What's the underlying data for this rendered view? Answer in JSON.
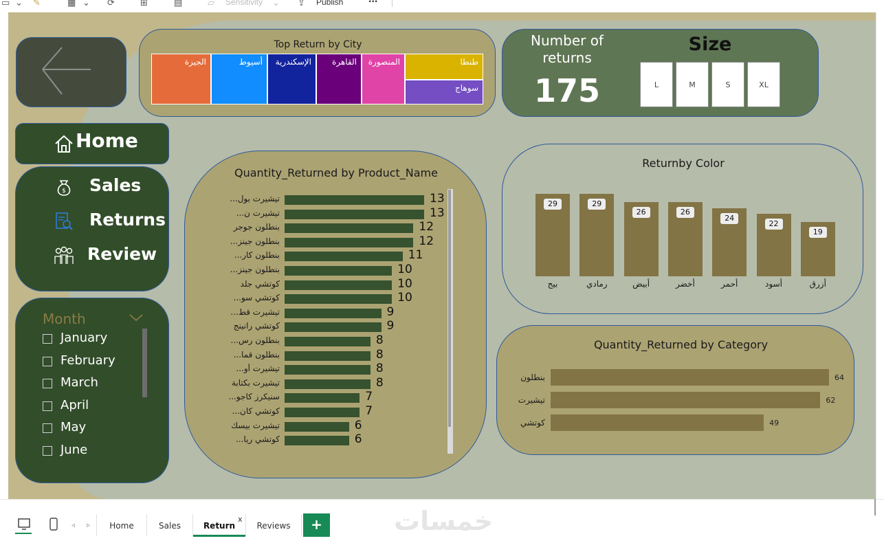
{
  "toolbar": {
    "sensitivity_label": "Sensitivity",
    "publish_label": "Publish",
    "more_label": "..."
  },
  "nav": {
    "home_label": "Home",
    "sales_label": "Sales",
    "returns_label": "Returns",
    "review_label": "Review"
  },
  "month_slicer": {
    "title": "Month",
    "items": [
      "January",
      "February",
      "March",
      "April",
      "May",
      "June"
    ]
  },
  "city_treemap": {
    "title": "Top Return by City",
    "cities": [
      {
        "name": "الجيزة",
        "color": "#e56b3a"
      },
      {
        "name": "أسيوط",
        "color": "#118dff"
      },
      {
        "name": "الإسكندرية",
        "color": "#12239e"
      },
      {
        "name": "القاهرة",
        "color": "#6b007b"
      },
      {
        "name": "المنصورة",
        "color": "#e044a7"
      },
      {
        "name": "طنطا",
        "color": "#d9b300"
      },
      {
        "name": "سوهاج",
        "color": "#744ec2"
      }
    ]
  },
  "kpi": {
    "title_line1": "Number of",
    "title_line2": "returns",
    "value": "175"
  },
  "size_slicer": {
    "title": "Size",
    "options": [
      "L",
      "M",
      "S",
      "XL"
    ]
  },
  "product_chart": {
    "title": "Quantity_Returned by Product_Name",
    "max": 13,
    "rows": [
      {
        "name": "تيشيرت بول...",
        "value": 13
      },
      {
        "name": "تيشيرت ن...",
        "value": 13
      },
      {
        "name": "بنطلون جوجر",
        "value": 12
      },
      {
        "name": "بنطلون جينز...",
        "value": 12
      },
      {
        "name": "بنطلون كار...",
        "value": 11
      },
      {
        "name": "بنطلون جينز...",
        "value": 10
      },
      {
        "name": "كوتشي جلد",
        "value": 10
      },
      {
        "name": "كوتشي سو...",
        "value": 10
      },
      {
        "name": "تيشيرت قط...",
        "value": 9
      },
      {
        "name": "كوتشي رانينج",
        "value": 9
      },
      {
        "name": "بنطلون رس...",
        "value": 8
      },
      {
        "name": "بنطلون قما...",
        "value": 8
      },
      {
        "name": "تيشيرت أو...",
        "value": 8
      },
      {
        "name": "تيشيرت بكتابة",
        "value": 8
      },
      {
        "name": "سنيكرز كاجو...",
        "value": 7
      },
      {
        "name": "كوتشي كان...",
        "value": 7
      },
      {
        "name": "تيشيرت بيسك",
        "value": 6
      },
      {
        "name": "كوتشي ريا...",
        "value": 6
      }
    ]
  },
  "chart_data": [
    {
      "type": "bar",
      "title": "Quantity_Returned by Product_Name",
      "orientation": "horizontal",
      "categories": [
        "تيشيرت بول...",
        "تيشيرت ن...",
        "بنطلون جوجر",
        "بنطلون جينز...",
        "بنطلون كار...",
        "بنطلون جينز...",
        "كوتشي جلد",
        "كوتشي سو...",
        "تيشيرت قط...",
        "كوتشي رانينج",
        "بنطلون رس...",
        "بنطلون قما...",
        "تيشيرت أو...",
        "تيشيرت بكتابة",
        "سنيكرز كاجو...",
        "كوتشي كان...",
        "تيشيرت بيسك",
        "كوتشي ريا..."
      ],
      "values": [
        13,
        13,
        12,
        12,
        11,
        10,
        10,
        10,
        9,
        9,
        8,
        8,
        8,
        8,
        7,
        7,
        6,
        6
      ]
    },
    {
      "type": "bar",
      "title": "Returnby Color",
      "orientation": "vertical",
      "categories": [
        "بيج",
        "رمادي",
        "أبيض",
        "أخضر",
        "أحمر",
        "أسود",
        "أزرق"
      ],
      "values": [
        29,
        29,
        26,
        26,
        24,
        22,
        19
      ]
    },
    {
      "type": "bar",
      "title": "Quantity_Returned by Category",
      "orientation": "horizontal",
      "categories": [
        "بنطلون",
        "تيشيرت",
        "كوتشي"
      ],
      "values": [
        64,
        62,
        49
      ]
    }
  ],
  "color_chart": {
    "title": "Returnby Color",
    "max": 29,
    "rows": [
      {
        "name": "بيج",
        "value": 29
      },
      {
        "name": "رمادي",
        "value": 29
      },
      {
        "name": "أبيض",
        "value": 26
      },
      {
        "name": "أخضر",
        "value": 26
      },
      {
        "name": "أحمر",
        "value": 24
      },
      {
        "name": "أسود",
        "value": 22
      },
      {
        "name": "أزرق",
        "value": 19
      }
    ]
  },
  "category_chart": {
    "title": "Quantity_Returned by Category",
    "max": 64,
    "rows": [
      {
        "name": "بنطلون",
        "value": 64
      },
      {
        "name": "تيشيرت",
        "value": 62
      },
      {
        "name": "كوتشي",
        "value": 49
      }
    ]
  },
  "tabs": {
    "items": [
      "Home",
      "Sales",
      "Return",
      "Reviews"
    ],
    "active": "Return",
    "add_label": "+",
    "close_label": "x"
  },
  "watermark": "خمسات",
  "colors": {
    "canvas": "#c1b78a",
    "panel": "#b6bcaa",
    "dark_green": "#324d2a",
    "kpi_green": "#5f7654",
    "bar_green": "#36522e",
    "bar_olive": "#837445",
    "tab_accent": "#178a55"
  }
}
